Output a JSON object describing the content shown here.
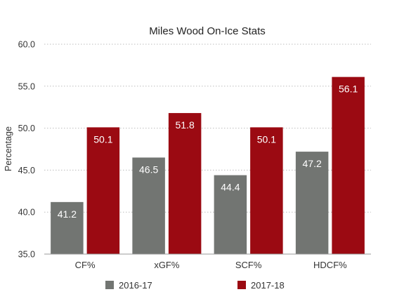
{
  "chart_data": {
    "type": "bar",
    "title": "Miles Wood On-Ice Stats",
    "xlabel": "",
    "ylabel": "Percentage",
    "ylim": [
      35.0,
      60.0
    ],
    "yticks": [
      "35.0",
      "40.0",
      "45.0",
      "50.0",
      "55.0",
      "60.0"
    ],
    "grid": true,
    "legend_position": "bottom",
    "categories": [
      "CF%",
      "xGF%",
      "SCF%",
      "HDCF%"
    ],
    "series": [
      {
        "name": "2016-17",
        "color": "#727572",
        "values": [
          41.2,
          46.5,
          44.4,
          47.2
        ]
      },
      {
        "name": "2017-18",
        "color": "#9b0a12",
        "values": [
          50.1,
          51.8,
          50.1,
          56.1
        ]
      }
    ]
  }
}
